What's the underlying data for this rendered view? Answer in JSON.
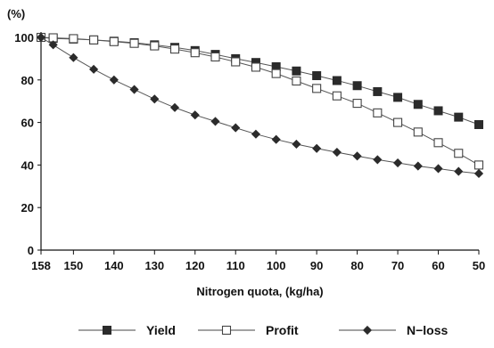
{
  "chart_data": {
    "type": "line",
    "ylabel": "(%)",
    "xlabel": "Nitrogen quota, (kg/ha)",
    "xlim": [
      158,
      50
    ],
    "ylim": [
      0,
      100
    ],
    "x_ticks": [
      158,
      150,
      140,
      130,
      120,
      110,
      100,
      90,
      80,
      70,
      60,
      50
    ],
    "y_ticks": [
      0,
      20,
      40,
      60,
      80,
      100
    ],
    "grid": false,
    "legend_position": "bottom",
    "series": [
      {
        "name": "Yield",
        "marker": "filled-square",
        "color": "#2b2b2b",
        "x": [
          158,
          155,
          150,
          145,
          140,
          135,
          130,
          125,
          120,
          115,
          110,
          105,
          100,
          95,
          90,
          85,
          80,
          75,
          70,
          65,
          60,
          55,
          50
        ],
        "values": [
          100,
          99.5,
          99.2,
          98.8,
          98.2,
          97.5,
          96.5,
          95.3,
          93.8,
          92,
          90,
          88.2,
          86.2,
          84.2,
          82,
          79.7,
          77.3,
          74.5,
          71.8,
          68.5,
          65.5,
          62.5,
          59
        ]
      },
      {
        "name": "Profit",
        "marker": "open-square",
        "color": "#2b2b2b",
        "x": [
          158,
          155,
          150,
          145,
          140,
          135,
          130,
          125,
          120,
          115,
          110,
          105,
          100,
          95,
          90,
          85,
          80,
          75,
          70,
          65,
          60,
          55,
          50
        ],
        "values": [
          100,
          99.8,
          99.4,
          98.8,
          98,
          97.2,
          96,
          94.5,
          92.8,
          90.8,
          88.5,
          86,
          83,
          79.5,
          76,
          72.5,
          69,
          64.5,
          60,
          55.5,
          50.5,
          45.5,
          40
        ]
      },
      {
        "name": "N-loss",
        "marker": "filled-diamond",
        "color": "#2b2b2b",
        "x": [
          158,
          155,
          150,
          145,
          140,
          135,
          130,
          125,
          120,
          115,
          110,
          105,
          100,
          95,
          90,
          85,
          80,
          75,
          70,
          65,
          60,
          55,
          50
        ],
        "values": [
          100,
          96.5,
          90.5,
          85,
          80,
          75.5,
          71,
          67,
          63.5,
          60.5,
          57.5,
          54.5,
          52,
          49.8,
          47.8,
          46,
          44.2,
          42.5,
          41,
          39.5,
          38.3,
          37,
          36
        ]
      }
    ]
  },
  "legend": {
    "items": [
      {
        "name": "Yield",
        "marker": "filled-square"
      },
      {
        "name": "Profit",
        "marker": "open-square"
      },
      {
        "name": "N−loss",
        "marker": "filled-diamond"
      }
    ]
  }
}
